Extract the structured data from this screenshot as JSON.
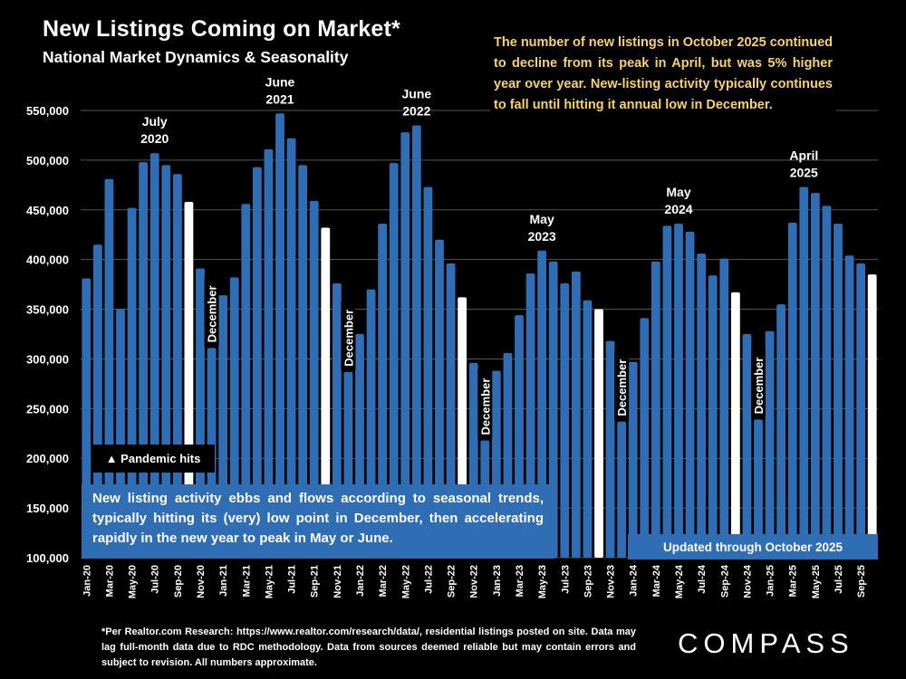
{
  "header": {
    "title": "New Listings Coming on Market*",
    "subtitle": "National Market Dynamics & Seasonality"
  },
  "commentary": "The number of new listings in October 2025 continued to decline from its peak in April, but was 5% higher year over year. New-listing activity typically continues to fall until hitting it annual low in December.",
  "annotations": {
    "pandemic": "▲ Pandemic hits",
    "seasonal": "New listing activity ebbs and flows according to seasonal trends, typically hitting its (very) low point in December, then accelerating rapidly in the new year to peak in May or June.",
    "updated": "Updated through October 2025"
  },
  "footnote": "*Per Realtor.com Research: https://www.realtor.com/research/data/, residential listings posted on site. Data may lag full-month data due to RDC methodology. Data from sources deemed reliable but may contain errors and subject to revision. All numbers approximate.",
  "logo": "COMPASS",
  "colors": {
    "bar": "#2f6db5",
    "highlight_bar": "#ffffff",
    "commentary_text": "#f6d36a",
    "background": "#000000",
    "grid": "#555555"
  },
  "chart_data": {
    "type": "bar",
    "title": "New Listings Coming on Market*",
    "subtitle": "National Market Dynamics & Seasonality",
    "xlabel": "",
    "ylabel": "",
    "ylim": [
      100000,
      550000
    ],
    "yticks": [
      100000,
      150000,
      200000,
      250000,
      300000,
      350000,
      400000,
      450000,
      500000,
      550000
    ],
    "ytick_labels": [
      "100,000",
      "150,000",
      "200,000",
      "250,000",
      "300,000",
      "350,000",
      "400,000",
      "450,000",
      "500,000",
      "550,000"
    ],
    "grid": true,
    "categories": [
      "Jan-20",
      "Feb-20",
      "Mar-20",
      "Apr-20",
      "May-20",
      "Jun-20",
      "Jul-20",
      "Aug-20",
      "Sep-20",
      "Oct-20",
      "Nov-20",
      "Dec-20",
      "Jan-21",
      "Feb-21",
      "Mar-21",
      "Apr-21",
      "May-21",
      "Jun-21",
      "Jul-21",
      "Aug-21",
      "Sep-21",
      "Oct-21",
      "Nov-21",
      "Dec-21",
      "Jan-22",
      "Feb-22",
      "Mar-22",
      "Apr-22",
      "May-22",
      "Jun-22",
      "Jul-22",
      "Aug-22",
      "Sep-22",
      "Oct-22",
      "Nov-22",
      "Dec-22",
      "Jan-23",
      "Feb-23",
      "Mar-23",
      "Apr-23",
      "May-23",
      "Jun-23",
      "Jul-23",
      "Aug-23",
      "Sep-23",
      "Oct-23",
      "Nov-23",
      "Dec-23",
      "Jan-24",
      "Feb-24",
      "Mar-24",
      "Apr-24",
      "May-24",
      "Jun-24",
      "Jul-24",
      "Aug-24",
      "Sep-24",
      "Oct-24",
      "Nov-24",
      "Dec-24",
      "Jan-25",
      "Feb-25",
      "Mar-25",
      "Apr-25",
      "May-25",
      "Jun-25",
      "Jul-25",
      "Aug-25",
      "Sep-25",
      "Oct-25"
    ],
    "xtick_labels": [
      "Jan-20",
      "Mar-20",
      "May-20",
      "Jul-20",
      "Sep-20",
      "Nov-20",
      "Jan-21",
      "Mar-21",
      "May-21",
      "Jul-21",
      "Sep-21",
      "Nov-21",
      "Jan-22",
      "Mar-22",
      "May-22",
      "Jul-22",
      "Sep-22",
      "Nov-22",
      "Jan-23",
      "Mar-23",
      "May-23",
      "Jul-23",
      "Sep-23",
      "Nov-23",
      "Jan-24",
      "Mar-24",
      "May-24",
      "Jul-24",
      "Sep-24",
      "Nov-24",
      "Jan-25",
      "Mar-25",
      "May-25",
      "Jul-25",
      "Sep-25"
    ],
    "values": [
      381000,
      415000,
      481000,
      350000,
      452000,
      498000,
      507000,
      495000,
      486000,
      458000,
      391000,
      311000,
      364000,
      382000,
      456000,
      493000,
      511000,
      547000,
      522000,
      495000,
      459000,
      432000,
      376000,
      287000,
      325000,
      370000,
      436000,
      497000,
      528000,
      535000,
      473000,
      420000,
      396000,
      362000,
      296000,
      218000,
      288000,
      306000,
      344000,
      386000,
      409000,
      398000,
      376000,
      388000,
      359000,
      350000,
      318000,
      237000,
      297000,
      341000,
      398000,
      434000,
      436000,
      428000,
      406000,
      384000,
      401000,
      367000,
      325000,
      239000,
      328000,
      355000,
      437000,
      473000,
      467000,
      454000,
      436000,
      404000,
      396000,
      385000
    ],
    "highlight_indices": [
      9,
      21,
      33,
      45,
      57,
      69
    ],
    "highlight_note": "October bars shown in white",
    "annotations": [
      {
        "index": 6,
        "label_line1": "July",
        "label_line2": "2020"
      },
      {
        "index": 17,
        "label_line1": "June",
        "label_line2": "2021"
      },
      {
        "index": 29,
        "label_line1": "June",
        "label_line2": "2022"
      },
      {
        "index": 40,
        "label_line1": "May",
        "label_line2": "2023"
      },
      {
        "index": 52,
        "label_line1": "May",
        "label_line2": "2024"
      },
      {
        "index": 63,
        "label_line1": "April",
        "label_line2": "2025"
      }
    ],
    "december_labels": [
      {
        "index": 11,
        "label": "December"
      },
      {
        "index": 23,
        "label": "December"
      },
      {
        "index": 35,
        "label": "December"
      },
      {
        "index": 47,
        "label": "December"
      },
      {
        "index": 59,
        "label": "December"
      }
    ]
  }
}
